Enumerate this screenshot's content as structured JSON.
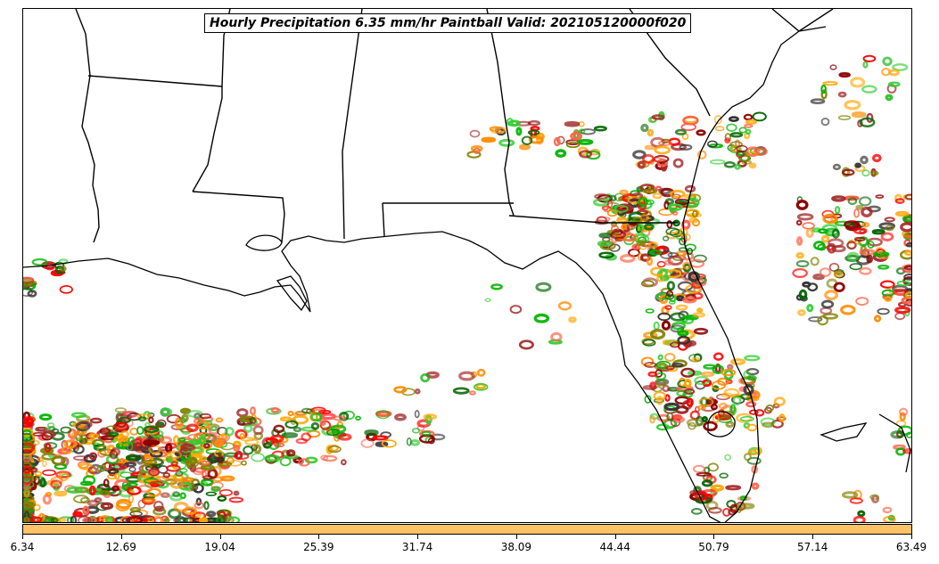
{
  "title": "Hourly Precipitation 6.35 mm/hr Paintball Valid: 202105120000f020",
  "colorbar": {
    "color": "#ffc266",
    "ticks": [
      "6.34",
      "12.69",
      "19.04",
      "25.39",
      "31.74",
      "38.09",
      "44.44",
      "50.79",
      "57.14",
      "63.49"
    ]
  },
  "palette": [
    "#ff0000",
    "#ff8c00",
    "#00b300",
    "#8b0000",
    "#808000",
    "#006400",
    "#ff6347",
    "#333333",
    "#32cd32",
    "#a52a2a",
    "#ffa500"
  ]
}
